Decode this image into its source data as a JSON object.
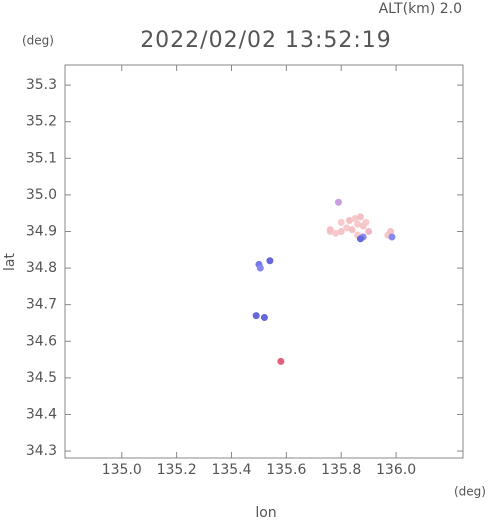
{
  "chart_data": {
    "type": "scatter",
    "subtitle": "ALT(km) 2.0",
    "title": "2022/02/02 13:52:19",
    "y_unit": "(deg)",
    "x_unit": "(deg)",
    "x_label": "lon",
    "y_label": "lat",
    "xlim": [
      134.793,
      136.244
    ],
    "ylim": [
      34.281,
      35.355
    ],
    "xticks": [
      {
        "value": 135,
        "label": "135.0"
      },
      135.2,
      135.4,
      135.6,
      135.8,
      {
        "value": 136,
        "label": "136.0"
      }
    ],
    "yticks": [
      34.3,
      34.4,
      34.5,
      34.6,
      34.7,
      34.8,
      34.9,
      {
        "value": 35,
        "label": "35.0"
      },
      35.1,
      35.2,
      35.3
    ],
    "grid": false,
    "x": [
      135.76,
      135.78,
      135.8,
      135.82,
      135.84,
      135.86,
      135.88,
      135.8,
      135.83,
      135.85,
      135.87,
      135.89,
      135.9,
      135.86,
      135.88,
      135.79,
      135.97,
      135.98,
      135.985,
      135.5,
      135.505,
      135.58,
      135.49,
      135.52,
      135.54,
      135.87,
      135.76
    ],
    "values": [
      34.9,
      34.895,
      34.9,
      34.91,
      34.905,
      34.92,
      34.915,
      34.925,
      34.93,
      34.935,
      34.94,
      34.925,
      34.9,
      34.89,
      34.885,
      34.98,
      34.89,
      34.9,
      34.885,
      34.81,
      34.8,
      34.545,
      34.67,
      34.665,
      34.82,
      34.88,
      34.905
    ],
    "colors": [
      "#f6caca",
      "#f6caca",
      "#f4c4c8",
      "#f6caca",
      "#f4c0c4",
      "#f6caca",
      "#f4c4c8",
      "#f6caca",
      "#f4c0c4",
      "#f6caca",
      "#f4c0c4",
      "#f6caca",
      "#f0b8c4",
      "#f6caca",
      "#8888ee",
      "#c8a0e0",
      "#f6caca",
      "#f4c0c4",
      "#8888ee",
      "#7777ee",
      "#8888ee",
      "#e0607a",
      "#6666dd",
      "#6666dd",
      "#6666dd",
      "#6666dd",
      "#f4c0c4"
    ]
  }
}
